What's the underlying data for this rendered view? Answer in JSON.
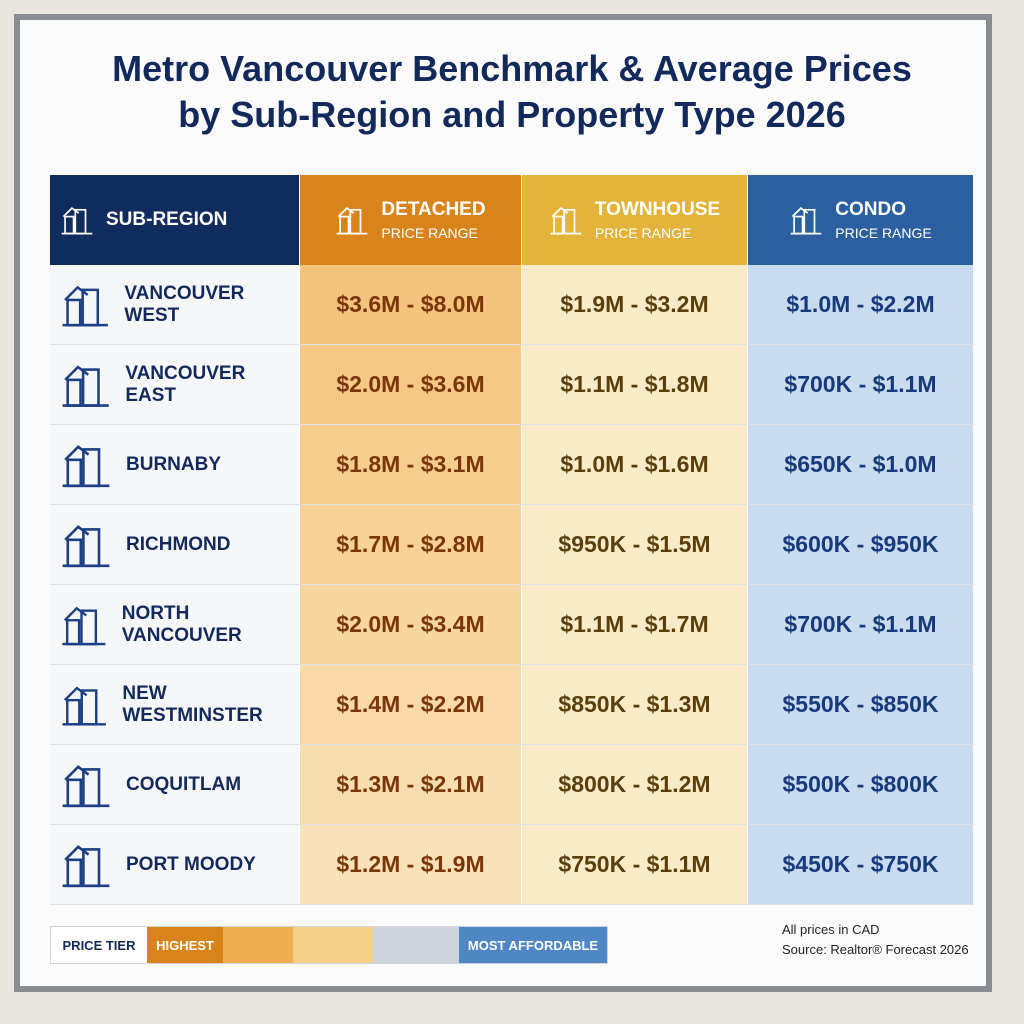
{
  "title": [
    "Metro Vancouver Benchmark & Average Prices",
    "by Sub-Region and Property Type 2026"
  ],
  "table": {
    "header": [
      {
        "label": "SUB-REGION"
      },
      {
        "label": "DETACHED",
        "sub": "PRICE RANGE"
      },
      {
        "label": "TOWNHOUSE",
        "sub": "PRICE RANGE"
      },
      {
        "label": "CONDO",
        "sub": "PRICE RANGE"
      }
    ],
    "rows": [
      [
        "VANCOUVER WEST",
        "$3.6M - $8.0M",
        "$1.9M - $3.2M",
        "$1.0M - $2.2M"
      ],
      [
        "VANCOUVER EAST",
        "$2.0M - $3.6M",
        "$1.1M - $1.8M",
        "$700K - $1.1M"
      ],
      [
        "BURNABY",
        "$1.8M - $3.1M",
        "$1.0M - $1.6M",
        "$650K - $1.0M"
      ],
      [
        "RICHMOND",
        "$1.7M - $2.8M",
        "$950K - $1.5M",
        "$600K - $950K"
      ],
      [
        "NORTH VANCOUVER",
        "$2.0M - $3.4M",
        "$1.1M - $1.7M",
        "$700K - $1.1M"
      ],
      [
        "NEW WESTMINSTER",
        "$1.4M - $2.2M",
        "$850K - $1.3M",
        "$550K - $850K"
      ],
      [
        "COQUITLAM",
        "$1.3M - $2.1M",
        "$800K - $1.2M",
        "$500K - $800K"
      ],
      [
        "PORT MOODY",
        "$1.2M - $1.9M",
        "$750K - $1.1M",
        "$450K - $750K"
      ]
    ]
  },
  "legend": {
    "label": "PRICE TIER",
    "high": "HIGHEST",
    "low": "MOST AFFORDABLE"
  },
  "footnote": [
    "All prices in CAD",
    "Source: Realtor® Forecast 2026"
  ]
}
